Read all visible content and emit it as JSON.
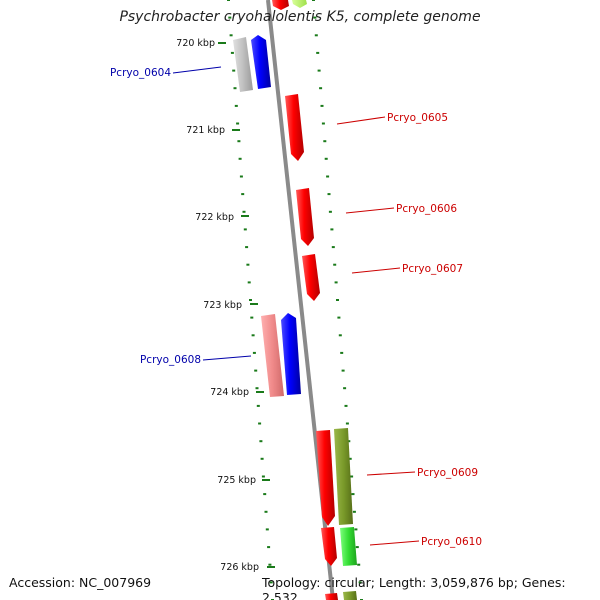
{
  "title": "Psychrobacter cryohalolentis K5, complete genome",
  "footer": {
    "accession": "Accession: NC_007969",
    "summary": "Topology: circular; Length: 3,059,876 bp; Genes: 2,532"
  },
  "scale_labels": [
    "720 kbp",
    "721 kbp",
    "722 kbp",
    "723 kbp",
    "724 kbp",
    "725 kbp",
    "726 kbp"
  ],
  "genes": [
    {
      "name": "Pcryo_0604",
      "strand": "reverse"
    },
    {
      "name": "Pcryo_0605",
      "strand": "forward"
    },
    {
      "name": "Pcryo_0606",
      "strand": "forward"
    },
    {
      "name": "Pcryo_0607",
      "strand": "forward"
    },
    {
      "name": "Pcryo_0608",
      "strand": "reverse"
    },
    {
      "name": "Pcryo_0609",
      "strand": "forward"
    },
    {
      "name": "Pcryo_0610",
      "strand": "forward"
    }
  ],
  "colors": {
    "forward_label": "#cc0000",
    "reverse_label": "#0000aa",
    "tick": "#1a7a1a",
    "backbone": "#888888"
  }
}
